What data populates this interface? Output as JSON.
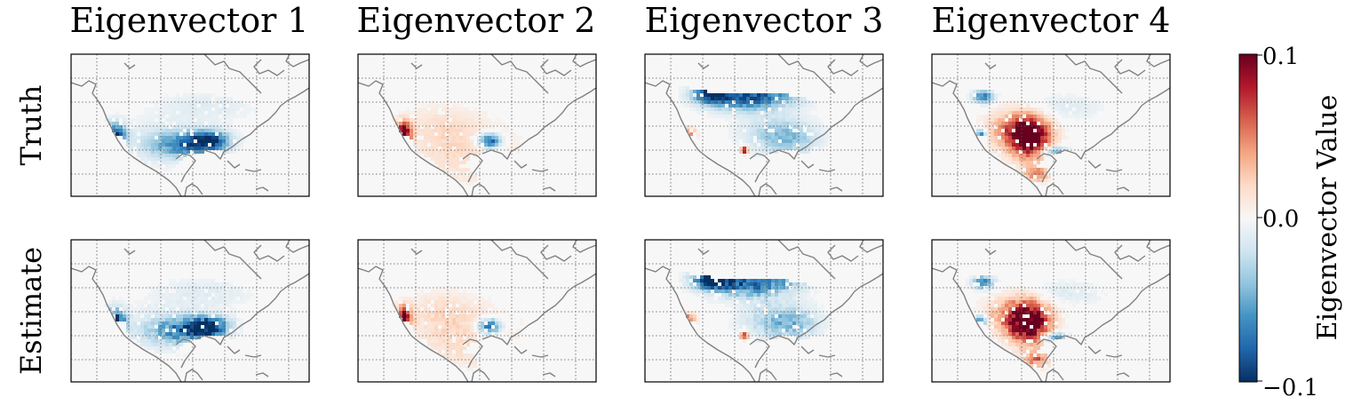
{
  "chart_data": {
    "type": "heatmap",
    "columns": [
      "Eigenvector 1",
      "Eigenvector 2",
      "Eigenvector 3",
      "Eigenvector 4"
    ],
    "rows": [
      "Truth",
      "Estimate"
    ],
    "colorbar": {
      "label": "Eigenvector Value",
      "ticks": [
        "0.1",
        "0.0",
        "−0.1"
      ],
      "range": [
        -0.1,
        0.1
      ],
      "colormap": "RdBu_r",
      "colors": [
        "#053061",
        "#2166ac",
        "#4393c3",
        "#92c5de",
        "#d1e5f0",
        "#f7f7f7",
        "#fddbc7",
        "#f4a582",
        "#d6604d",
        "#b2182b",
        "#67001f"
      ]
    },
    "grid": true,
    "map_region": "North America",
    "coastline_color": "#808080",
    "background_color": "#f7f7f7"
  }
}
